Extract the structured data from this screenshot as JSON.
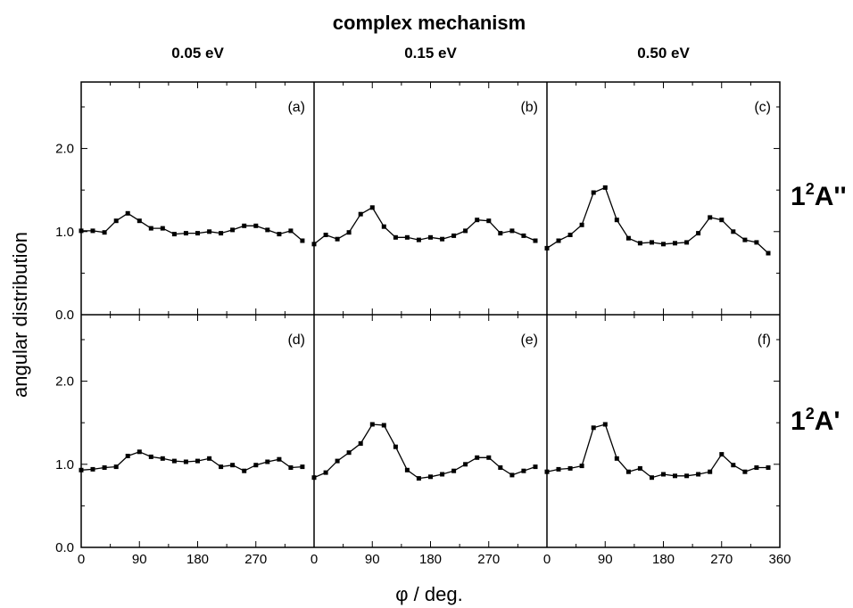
{
  "chart_data": {
    "type": "line",
    "title": "complex mechanism",
    "xlabel": "φ / deg.",
    "ylabel": "angular distribution",
    "xlim": [
      0,
      360
    ],
    "ylim": [
      0,
      2.8
    ],
    "x_ticks": [
      0,
      90,
      180,
      270,
      360
    ],
    "x_tick_labels": [
      "0",
      "90",
      "180",
      "270",
      ""
    ],
    "x_tick_labels_last_column": [
      "0",
      "90",
      "180",
      "270",
      "360"
    ],
    "y_ticks": [
      0.0,
      1.0,
      2.0
    ],
    "y_tick_labels": [
      "0.0",
      "1.0",
      "2.0"
    ],
    "columns": [
      "0.05 eV",
      "0.15 eV",
      "0.50 eV"
    ],
    "rows": [
      {
        "label_main": "1",
        "label_sup": "2",
        "label_rest": "A''"
      },
      {
        "label_main": "1",
        "label_sup": "2",
        "label_rest": "A'"
      }
    ],
    "x": [
      0,
      18,
      36,
      54,
      72,
      90,
      108,
      126,
      144,
      162,
      180,
      198,
      216,
      234,
      252,
      270,
      288,
      306,
      324,
      342,
      360
    ],
    "panels": [
      {
        "label": "(a)",
        "row": 0,
        "col": 0,
        "values": [
          1.01,
          1.01,
          0.99,
          1.13,
          1.22,
          1.13,
          1.04,
          1.04,
          0.97,
          0.98,
          0.98,
          1.0,
          0.98,
          1.02,
          1.07,
          1.07,
          1.02,
          0.97,
          1.01,
          0.89,
          null
        ]
      },
      {
        "label": "(b)",
        "row": 0,
        "col": 1,
        "values": [
          0.85,
          0.96,
          0.91,
          0.99,
          1.21,
          1.29,
          1.06,
          0.93,
          0.93,
          0.9,
          0.93,
          0.91,
          0.95,
          1.01,
          1.14,
          1.13,
          0.98,
          1.01,
          0.95,
          0.89,
          null
        ]
      },
      {
        "label": "(c)",
        "row": 0,
        "col": 2,
        "values": [
          0.8,
          0.89,
          0.96,
          1.08,
          1.47,
          1.53,
          1.14,
          0.92,
          0.86,
          0.87,
          0.85,
          0.86,
          0.87,
          0.98,
          1.17,
          1.14,
          1.0,
          0.9,
          0.87,
          0.74,
          null
        ]
      },
      {
        "label": "(d)",
        "row": 1,
        "col": 0,
        "values": [
          0.93,
          0.94,
          0.96,
          0.97,
          1.1,
          1.15,
          1.09,
          1.07,
          1.04,
          1.03,
          1.04,
          1.07,
          0.97,
          0.99,
          0.92,
          0.99,
          1.03,
          1.06,
          0.96,
          0.97,
          null
        ]
      },
      {
        "label": "(e)",
        "row": 1,
        "col": 1,
        "values": [
          0.84,
          0.9,
          1.04,
          1.14,
          1.25,
          1.48,
          1.47,
          1.21,
          0.93,
          0.83,
          0.85,
          0.88,
          0.92,
          1.0,
          1.08,
          1.08,
          0.96,
          0.87,
          0.92,
          0.97,
          null
        ]
      },
      {
        "label": "(f)",
        "row": 1,
        "col": 2,
        "values": [
          0.91,
          0.94,
          0.95,
          0.98,
          1.44,
          1.48,
          1.07,
          0.91,
          0.95,
          0.84,
          0.88,
          0.86,
          0.86,
          0.88,
          0.91,
          1.12,
          0.99,
          0.91,
          0.96,
          0.96,
          null
        ]
      }
    ],
    "grid": false,
    "legend": "none",
    "line_color": "#000000",
    "marker": "square"
  }
}
